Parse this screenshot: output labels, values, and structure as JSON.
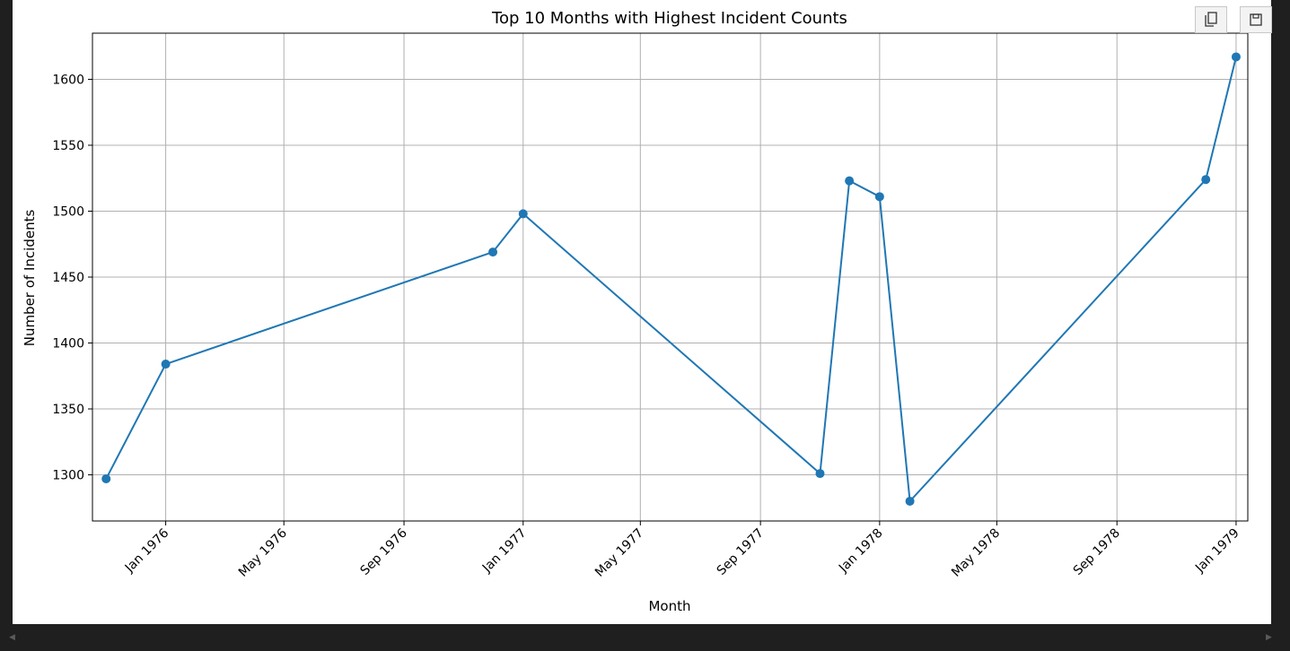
{
  "toolbar": {
    "copy_icon": "copy-icon",
    "save_icon": "save-icon"
  },
  "chart_data": {
    "type": "line",
    "title": "Top 10 Months with Highest Incident Counts",
    "xlabel": "Month",
    "ylabel": "Number of Incidents",
    "xlim": [
      "1975-10-18",
      "1979-01-13"
    ],
    "ylim": [
      1265,
      1635
    ],
    "grid": true,
    "color": "#1f77b4",
    "x_ticks": [
      {
        "date": "1976-01-01",
        "label": "Jan 1976"
      },
      {
        "date": "1976-05-01",
        "label": "May 1976"
      },
      {
        "date": "1976-09-01",
        "label": "Sep 1976"
      },
      {
        "date": "1977-01-01",
        "label": "Jan 1977"
      },
      {
        "date": "1977-05-01",
        "label": "May 1977"
      },
      {
        "date": "1977-09-01",
        "label": "Sep 1977"
      },
      {
        "date": "1978-01-01",
        "label": "Jan 1978"
      },
      {
        "date": "1978-05-01",
        "label": "May 1978"
      },
      {
        "date": "1978-09-01",
        "label": "Sep 1978"
      },
      {
        "date": "1979-01-01",
        "label": "Jan 1979"
      }
    ],
    "y_ticks": [
      1300,
      1350,
      1400,
      1450,
      1500,
      1550,
      1600
    ],
    "series": [
      {
        "x": [
          "1975-11-01",
          "1976-01-01",
          "1976-12-01",
          "1977-01-01",
          "1977-11-01",
          "1977-12-01",
          "1978-01-01",
          "1978-02-01",
          "1978-12-01",
          "1979-01-01"
        ],
        "y": [
          1297,
          1384,
          1469,
          1498,
          1301,
          1523,
          1511,
          1280,
          1524,
          1617
        ]
      }
    ]
  }
}
